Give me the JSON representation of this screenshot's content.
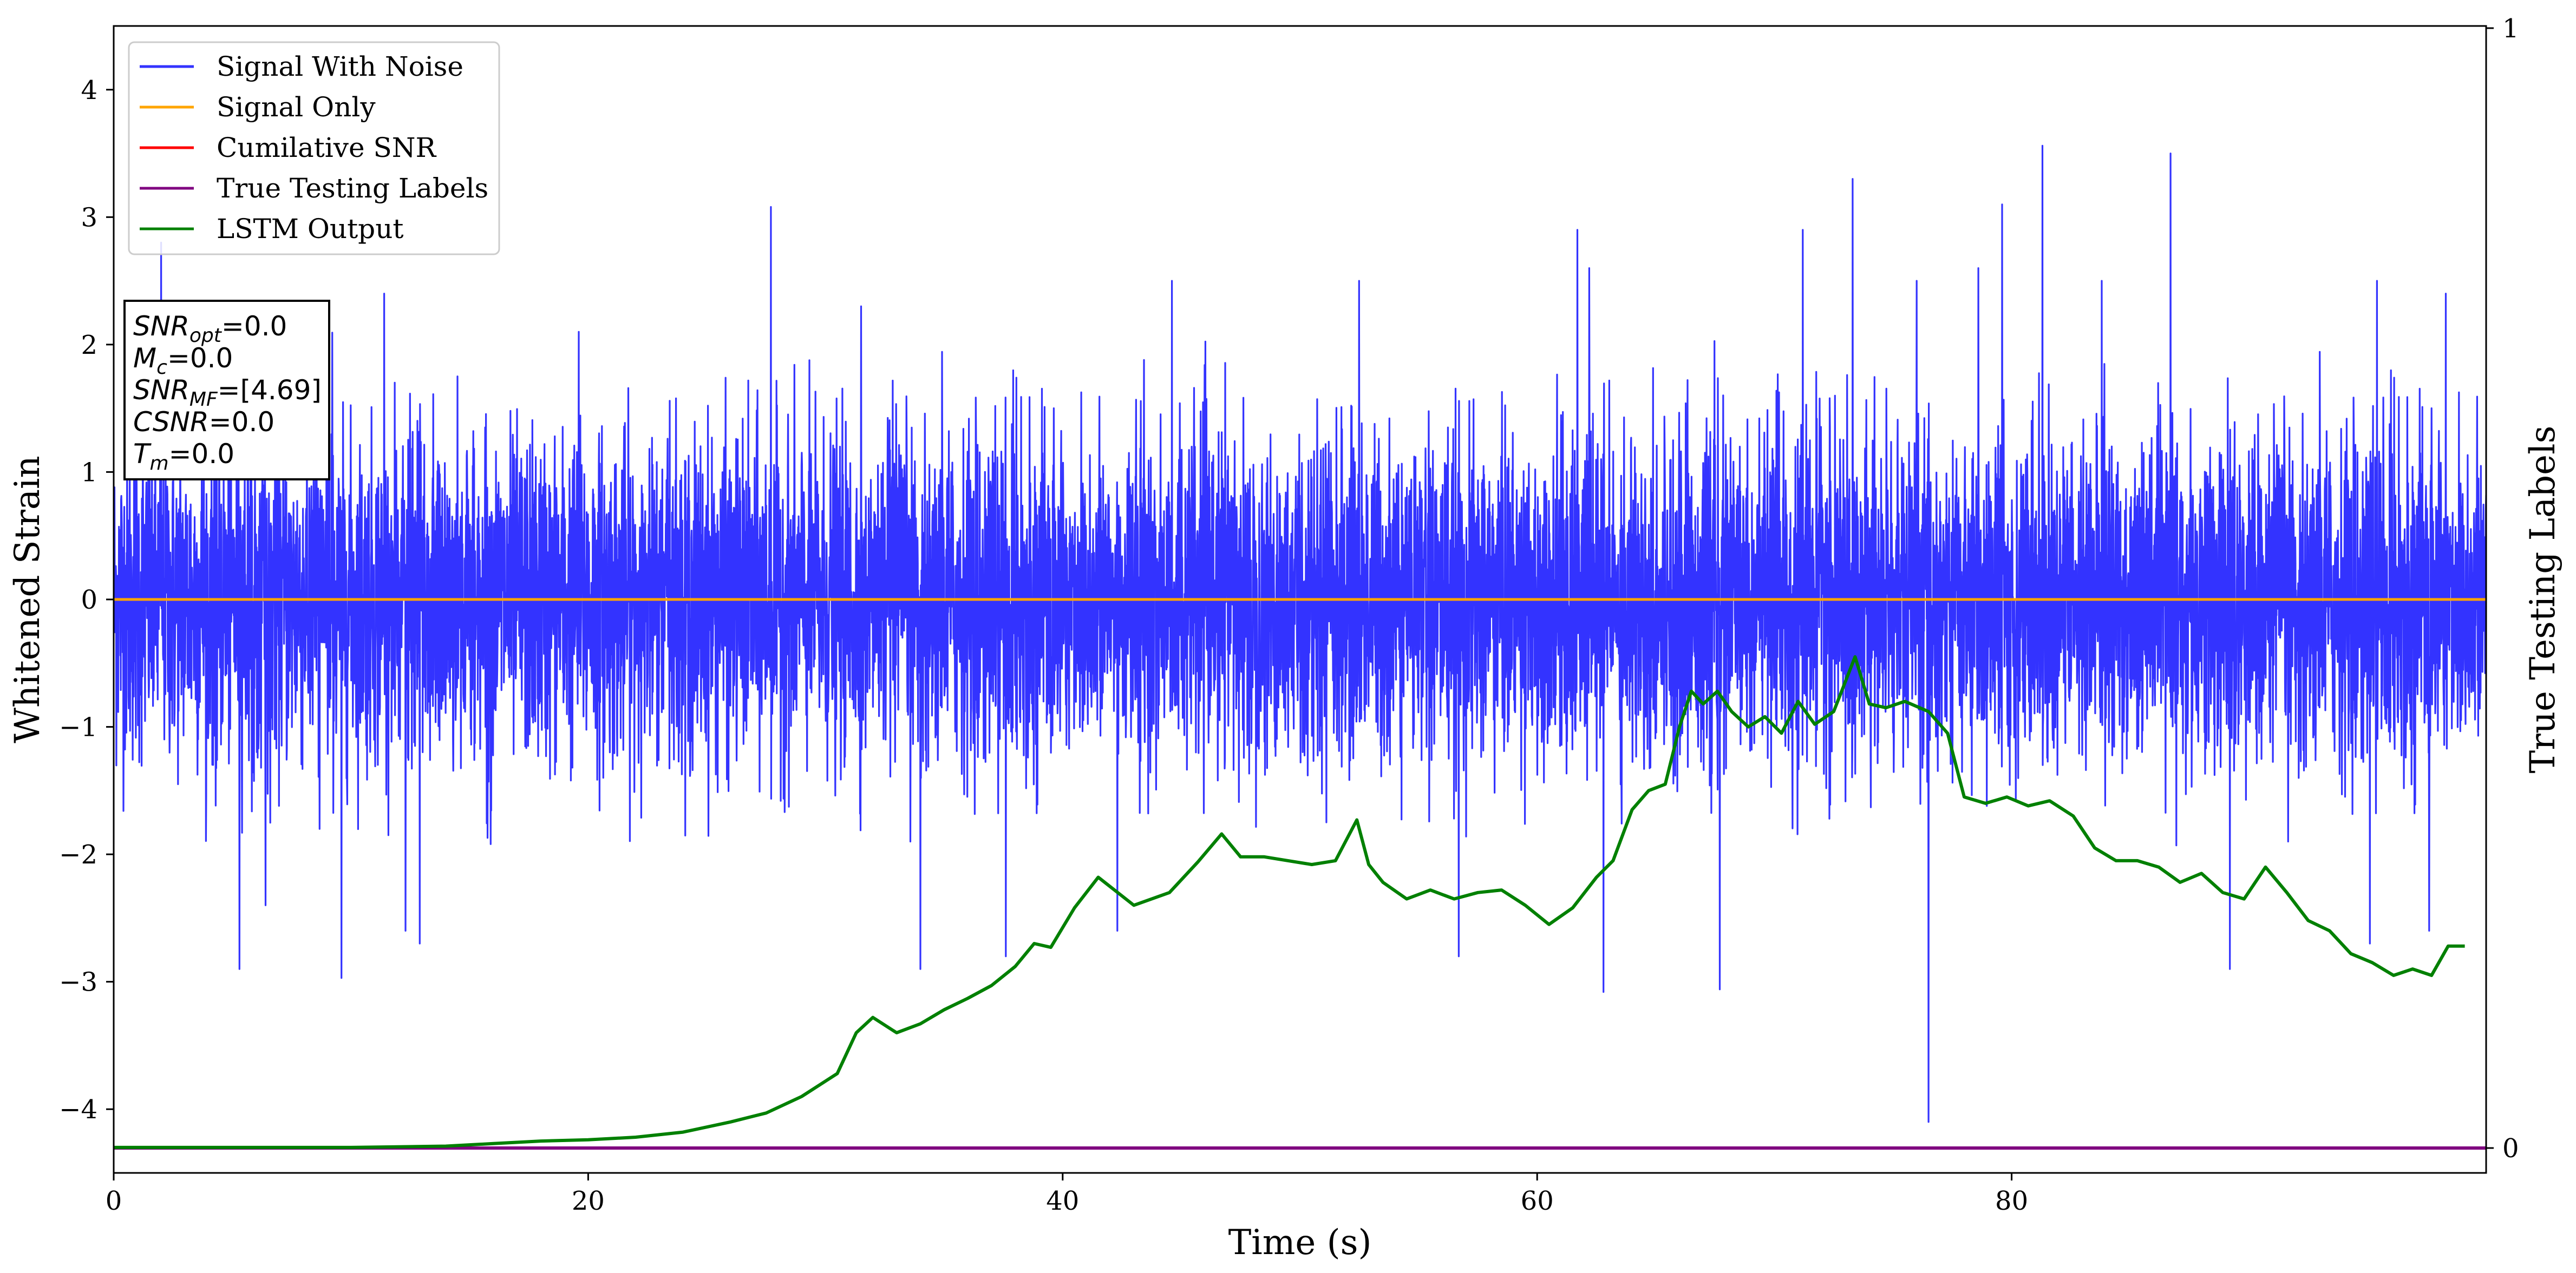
{
  "chart_data": {
    "type": "line",
    "xlabel": "Time (s)",
    "ylabel": "Whitened Strain",
    "y2label": "True Testing Labels",
    "xlim": [
      0,
      100
    ],
    "ylim": [
      -4.5,
      4.5
    ],
    "y2lim": [
      0,
      1
    ],
    "xticks": [
      0,
      20,
      40,
      60,
      80
    ],
    "yticks": [
      -4,
      -3,
      -2,
      -1,
      0,
      1,
      2,
      3,
      4
    ],
    "y2ticks": [
      0,
      1
    ],
    "grid": false,
    "legend_position": "top-left",
    "series": [
      {
        "name": "Signal With Noise",
        "color": "#3333ff",
        "description_values": "white noise around 0, typical range -2.5 to 2.5",
        "envelope": {
          "typical_min": -1.9,
          "typical_max": 1.9,
          "quartile": 0.55
        },
        "spikes_up": [
          [
            2.0,
            2.8
          ],
          [
            6.8,
            2.2
          ],
          [
            11.4,
            2.4
          ],
          [
            19.6,
            2.1
          ],
          [
            27.7,
            3.08
          ],
          [
            31.5,
            2.3
          ],
          [
            44.6,
            2.5
          ],
          [
            52.5,
            2.5
          ],
          [
            61.7,
            2.9
          ],
          [
            62.2,
            2.6
          ],
          [
            71.2,
            2.9
          ],
          [
            73.3,
            3.3
          ],
          [
            76.0,
            2.5
          ],
          [
            78.6,
            2.6
          ],
          [
            79.6,
            3.1
          ],
          [
            81.3,
            3.56
          ],
          [
            83.8,
            2.5
          ],
          [
            86.7,
            3.5
          ],
          [
            95.4,
            2.5
          ],
          [
            98.3,
            2.4
          ]
        ],
        "spikes_down": [
          [
            5.3,
            -2.9
          ],
          [
            6.4,
            -2.4
          ],
          [
            9.6,
            -2.97
          ],
          [
            12.3,
            -2.6
          ],
          [
            12.9,
            -2.7
          ],
          [
            34.0,
            -2.9
          ],
          [
            37.6,
            -2.8
          ],
          [
            42.3,
            -2.6
          ],
          [
            56.7,
            -2.8
          ],
          [
            62.8,
            -3.08
          ],
          [
            67.7,
            -3.06
          ],
          [
            76.5,
            -4.1
          ],
          [
            89.2,
            -2.9
          ],
          [
            95.1,
            -2.7
          ],
          [
            97.6,
            -2.6
          ]
        ]
      },
      {
        "name": "Signal Only",
        "color": "#ffa500",
        "x": [
          0,
          100
        ],
        "y": [
          0,
          0
        ]
      },
      {
        "name": "Cumilative SNR",
        "color": "#ff0000",
        "x": [],
        "y": []
      },
      {
        "name": "True Testing Labels",
        "color": "#800080",
        "axis": "right",
        "x": [
          0,
          100
        ],
        "y": [
          0,
          0
        ]
      },
      {
        "name": "LSTM Output",
        "color": "#008000",
        "axis": "left",
        "x": [
          0,
          10,
          14,
          16,
          18,
          20,
          22,
          24,
          26,
          27.5,
          29,
          30.5,
          31.3,
          32,
          33,
          34,
          35,
          36,
          37,
          38,
          38.8,
          39.5,
          40.5,
          41.5,
          43,
          44.5,
          45.7,
          46.7,
          47.5,
          48.5,
          49.5,
          50.5,
          51.5,
          52.4,
          52.9,
          53.5,
          54.5,
          55.5,
          56.5,
          57.5,
          58.5,
          59.5,
          60.5,
          61.5,
          62.5,
          63.2,
          64.0,
          64.7,
          65.4,
          66.0,
          66.5,
          67.0,
          67.6,
          68.2,
          68.9,
          69.6,
          70.3,
          71.0,
          71.7,
          72.5,
          73.4,
          74.0,
          74.7,
          75.5,
          76.5,
          77.3,
          78.0,
          78.9,
          79.8,
          80.7,
          81.6,
          82.6,
          83.5,
          84.4,
          85.3,
          86.2,
          87.1,
          88.0,
          88.9,
          89.8,
          90.7,
          91.6,
          92.5,
          93.4,
          94.3,
          95.2,
          96.1,
          96.9,
          97.7,
          98.4,
          99.1
        ],
        "y": [
          -4.3,
          -4.3,
          -4.29,
          -4.27,
          -4.25,
          -4.24,
          -4.22,
          -4.18,
          -4.1,
          -4.03,
          -3.9,
          -3.72,
          -3.4,
          -3.28,
          -3.4,
          -3.33,
          -3.22,
          -3.13,
          -3.03,
          -2.88,
          -2.7,
          -2.73,
          -2.42,
          -2.18,
          -2.4,
          -2.3,
          -2.06,
          -1.84,
          -2.02,
          -2.02,
          -2.05,
          -2.08,
          -2.05,
          -1.73,
          -2.08,
          -2.22,
          -2.35,
          -2.28,
          -2.35,
          -2.3,
          -2.28,
          -2.4,
          -2.55,
          -2.42,
          -2.18,
          -2.05,
          -1.65,
          -1.5,
          -1.45,
          -1.0,
          -0.72,
          -0.82,
          -0.72,
          -0.88,
          -1.0,
          -0.92,
          -1.05,
          -0.8,
          -0.98,
          -0.88,
          -0.45,
          -0.82,
          -0.85,
          -0.8,
          -0.88,
          -1.05,
          -1.55,
          -1.6,
          -1.55,
          -1.62,
          -1.58,
          -1.7,
          -1.95,
          -2.05,
          -2.05,
          -2.1,
          -2.22,
          -2.15,
          -2.3,
          -2.35,
          -2.1,
          -2.3,
          -2.52,
          -2.6,
          -2.78,
          -2.85,
          -2.95,
          -2.9,
          -2.95,
          -2.72,
          -2.72
        ]
      }
    ],
    "annotation_lines": [
      {
        "pre": "SNR",
        "sub": "opt",
        "post": "=0.0"
      },
      {
        "pre": "M",
        "sub": "c",
        "post": "=0.0"
      },
      {
        "pre": "SNR",
        "sub": "MF",
        "post": "=[4.69]"
      },
      {
        "pre": "CSNR",
        "sub": "",
        "post": "=0.0"
      },
      {
        "pre": "T",
        "sub": "m",
        "post": "=0.0"
      }
    ]
  }
}
